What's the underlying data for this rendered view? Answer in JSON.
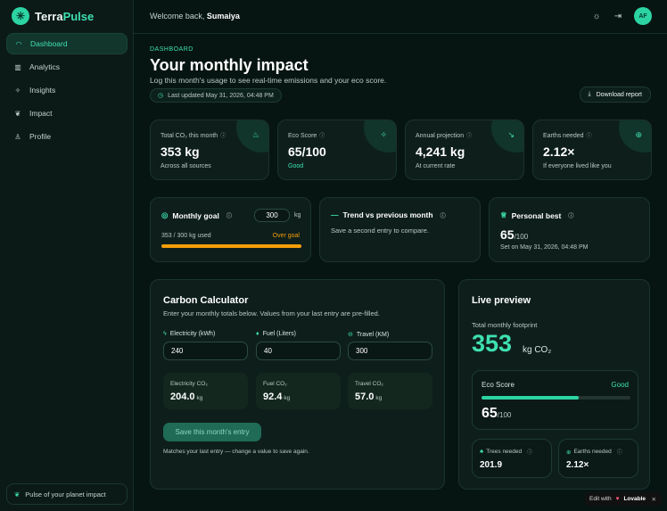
{
  "app": {
    "name_main": "Terra",
    "name_accent": "Pulse"
  },
  "sidebar": {
    "items": [
      {
        "label": "Dashboard",
        "icon": "gauge-icon"
      },
      {
        "label": "Analytics",
        "icon": "bar-chart-icon"
      },
      {
        "label": "Insights",
        "icon": "sparkles-icon"
      },
      {
        "label": "Impact",
        "icon": "leaf-icon"
      },
      {
        "label": "Profile",
        "icon": "user-icon"
      }
    ],
    "footer": "Pulse of your planet impact"
  },
  "topbar": {
    "welcome": "Welcome back,",
    "user": "Sumaiya",
    "avatar": "AF"
  },
  "header": {
    "eyebrow": "DASHBOARD",
    "title": "Your monthly impact",
    "subtitle": "Log this month's usage to see real-time emissions and your eco score.",
    "updated": "Last updated May 31, 2026, 04:48 PM",
    "download": "Download report"
  },
  "stats": [
    {
      "label": "Total CO₂ this month",
      "value": "353 kg",
      "note": "Across all sources",
      "icon": "flame-icon"
    },
    {
      "label": "Eco Score",
      "value": "65/100",
      "note": "Good",
      "icon": "sparkle-icon"
    },
    {
      "label": "Annual projection",
      "value": "4,241 kg",
      "note": "At current rate",
      "icon": "trending-icon"
    },
    {
      "label": "Earths needed",
      "value": "2.12×",
      "note": "If everyone lived like you",
      "icon": "globe-icon"
    }
  ],
  "goal": {
    "title": "Monthly goal",
    "input": "300",
    "unit": "kg",
    "used": "353 / 300 kg used",
    "status": "Over goal",
    "progress": 1.0
  },
  "trend": {
    "title": "Trend vs previous month",
    "text": "Save a second entry to compare."
  },
  "best": {
    "title": "Personal best",
    "value": "65",
    "suffix": "/100",
    "date": "Set on May 31, 2026, 04:48 PM"
  },
  "calculator": {
    "title": "Carbon Calculator",
    "subtitle": "Enter your monthly totals below. Values from your last entry are pre-filled.",
    "fields": [
      {
        "label": "Electricity (kWh)",
        "value": "240",
        "co2_label": "Electricity CO₂",
        "co2": "204.0",
        "unit": "kg"
      },
      {
        "label": "Fuel (Liters)",
        "value": "40",
        "co2_label": "Fuel CO₂",
        "co2": "92.4",
        "unit": "kg"
      },
      {
        "label": "Travel (KM)",
        "value": "300",
        "co2_label": "Travel CO₂",
        "co2": "57.0",
        "unit": "kg"
      }
    ],
    "save": "Save this month's entry",
    "note": "Matches your last entry — change a value to save again."
  },
  "preview": {
    "title": "Live preview",
    "total_label": "Total monthly footprint",
    "total": "353",
    "unit": "kg CO₂",
    "eco_label": "Eco Score",
    "eco_status": "Good",
    "eco_value": "65",
    "eco_suffix": "/100",
    "eco_fraction": 0.65,
    "trees_label": "Trees needed",
    "trees": "201.9",
    "earths_label": "Earths needed",
    "earths": "2.12×"
  },
  "badge": {
    "prefix": "Edit with",
    "brand": "Lovable"
  },
  "colors": {
    "accent": "#3ee0b0",
    "warning": "#f59e0b",
    "background": "#071512"
  }
}
